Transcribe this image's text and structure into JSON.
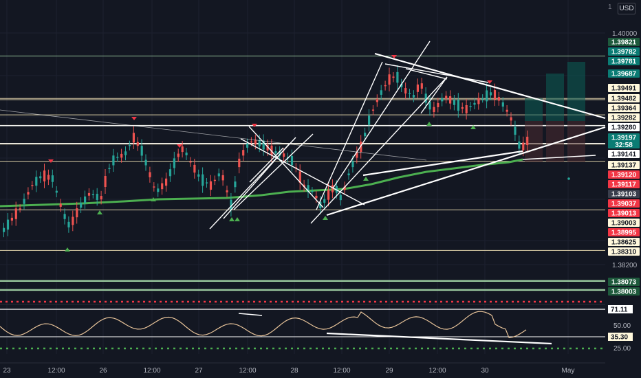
{
  "chart_data": {
    "type": "candlestick",
    "currency_label": "USD",
    "scale_label": "1",
    "price_scale_ticks": [
      "1.40000",
      "1.38200"
    ],
    "time_axis_labels": [
      "23",
      "12:00",
      "26",
      "12:00",
      "27",
      "12:00",
      "28",
      "12:00",
      "29",
      "12:00",
      "30",
      "May"
    ],
    "horizontal_levels": [
      {
        "value": "1.39821",
        "style": "green",
        "line": true
      },
      {
        "value": "1.39782",
        "style": "teal",
        "line": false
      },
      {
        "value": "1.39781",
        "style": "teal",
        "line": false
      },
      {
        "value": "1.39687",
        "style": "teal",
        "line": false
      },
      {
        "value": "1.39491",
        "style": "cream",
        "line": true
      },
      {
        "value": "1.39482",
        "style": "cream",
        "line": true
      },
      {
        "value": "1.39364",
        "style": "cream",
        "line": true
      },
      {
        "value": "1.39282",
        "style": "cream",
        "line": true
      },
      {
        "value": "1.39280",
        "style": "white",
        "line": true
      },
      {
        "value": "1.39197",
        "style": "teal",
        "line": false,
        "sub": "32:58"
      },
      {
        "value": "1.39141",
        "style": "white",
        "line": true
      },
      {
        "value": "1.39137",
        "style": "cream",
        "line": true
      },
      {
        "value": "1.39120",
        "style": "red",
        "line": false
      },
      {
        "value": "1.39117",
        "style": "red",
        "line": false
      },
      {
        "value": "1.39103",
        "style": "gray",
        "line": false
      },
      {
        "value": "1.39037",
        "style": "red",
        "line": false
      },
      {
        "value": "1.39013",
        "style": "red",
        "line": false
      },
      {
        "value": "1.39003",
        "style": "cream",
        "line": true
      },
      {
        "value": "1.38995",
        "style": "red",
        "line": false
      },
      {
        "value": "1.38625",
        "style": "cream",
        "line": true
      },
      {
        "value": "1.38310",
        "style": "cream",
        "line": true
      },
      {
        "value": "1.38073",
        "style": "green",
        "line": true
      },
      {
        "value": "1.38003",
        "style": "green",
        "line": true
      }
    ],
    "oscillator": {
      "scale_ticks": [
        "50.00",
        "25.00"
      ],
      "upper_level": "71.11",
      "current_value": "35.30"
    },
    "moving_average_color": "#4caf50",
    "up_color": "#26a69a",
    "down_color": "#ef5350"
  }
}
